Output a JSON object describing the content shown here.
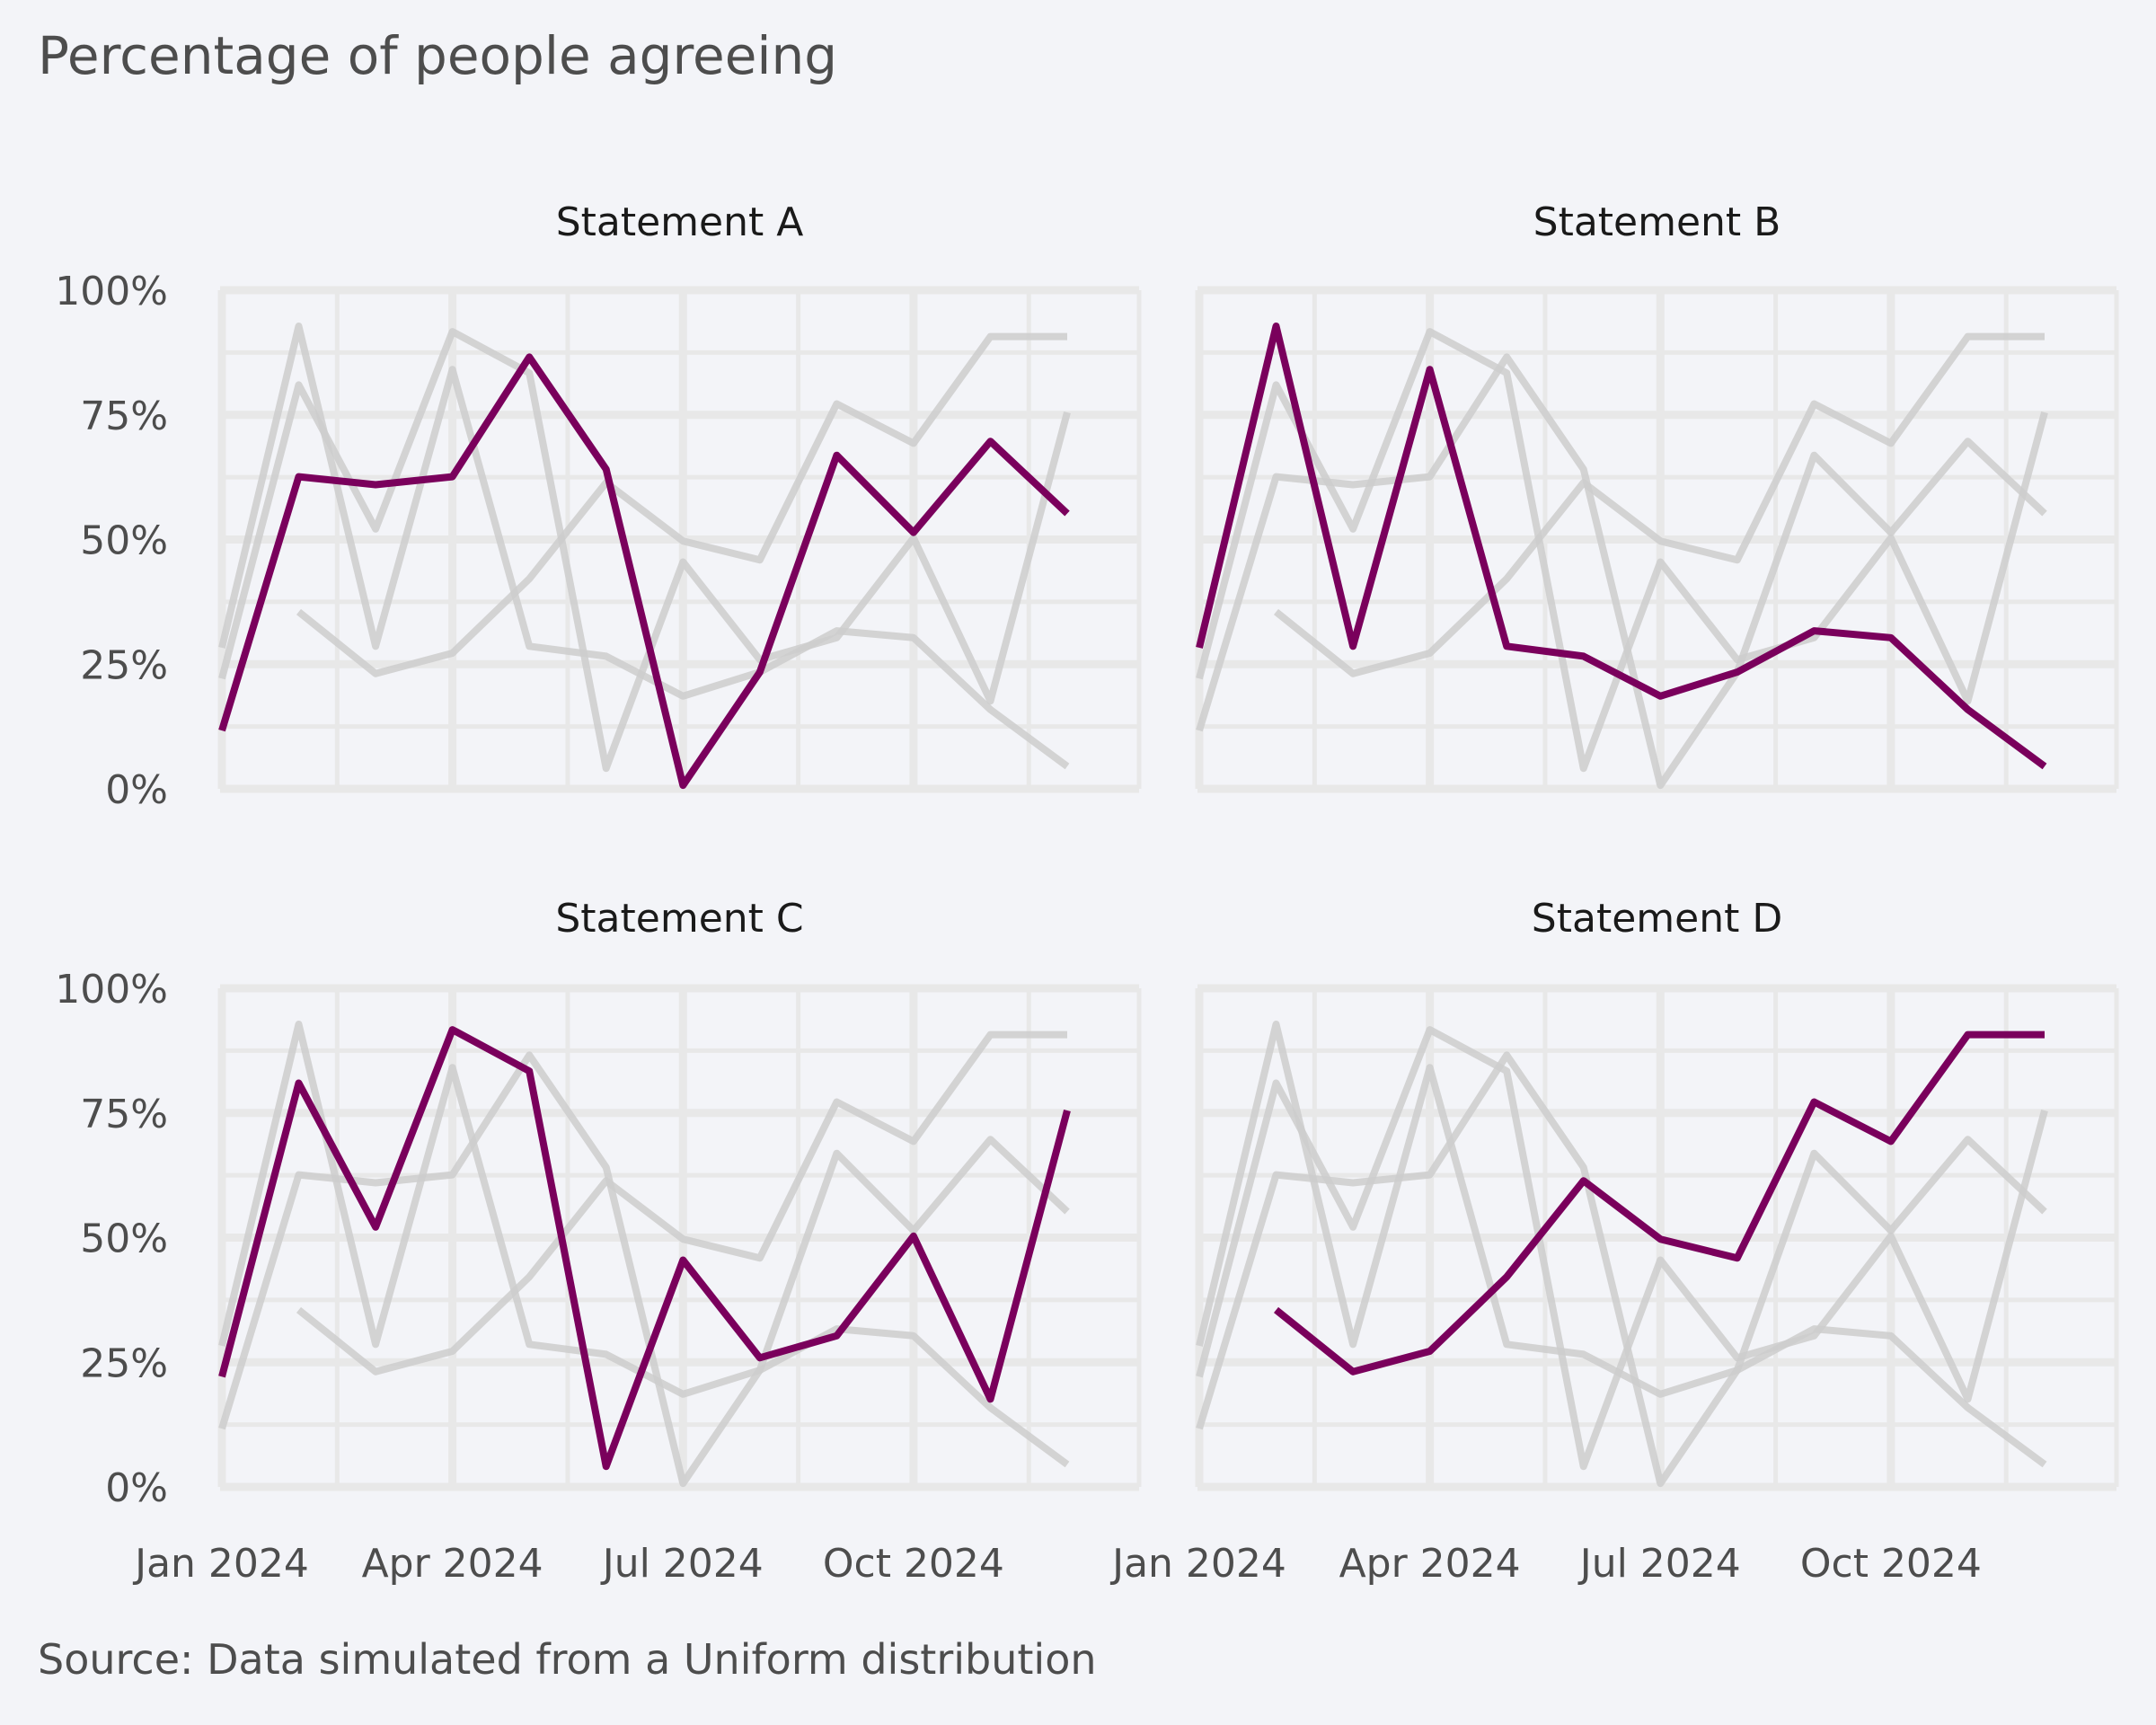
{
  "title": "Percentage of people agreeing",
  "caption": "Source: Data simulated from a Uniform distribution",
  "colors": {
    "highlight": "#7a005c",
    "background_series": "#cccccc",
    "grid": "#e8e8e8",
    "background": "#f3f4f8"
  },
  "chart_data": {
    "type": "line",
    "layout": "small-multiples 2x2",
    "title": "Percentage of people agreeing",
    "caption": "Source: Data simulated from a Uniform distribution",
    "xlabel": "",
    "ylabel": "",
    "x": [
      "2024-01",
      "2024-02",
      "2024-03",
      "2024-04",
      "2024-05",
      "2024-06",
      "2024-07",
      "2024-08",
      "2024-09",
      "2024-10",
      "2024-11",
      "2024-12"
    ],
    "x_tick_labels": [
      "Jan 2024",
      "Apr 2024",
      "Jul 2024",
      "Oct 2024"
    ],
    "x_tick_index": [
      0,
      3,
      6,
      9
    ],
    "y_tick_labels": [
      "0%",
      "25%",
      "50%",
      "75%",
      "100%"
    ],
    "y_tick_values": [
      0,
      25,
      50,
      75,
      100
    ],
    "ylim": [
      0,
      100
    ],
    "grid": true,
    "legend": "none",
    "series": [
      {
        "name": "Statement A",
        "values": [
          11.7,
          62.6,
          61.0,
          62.6,
          86.6,
          64.1,
          0.7,
          23.4,
          66.9,
          51.4,
          69.7,
          55.2
        ]
      },
      {
        "name": "Statement B",
        "values": [
          28.3,
          92.8,
          28.6,
          84.1,
          28.6,
          26.6,
          18.6,
          23.4,
          31.7,
          30.3,
          15.9,
          4.5
        ]
      },
      {
        "name": "Statement C",
        "values": [
          22.1,
          81.0,
          52.1,
          91.7,
          83.4,
          4.1,
          45.5,
          25.9,
          30.3,
          50.3,
          17.6,
          75.5
        ]
      },
      {
        "name": "Statement D",
        "values": [
          null,
          35.5,
          23.1,
          27.2,
          42.1,
          61.4,
          49.7,
          45.9,
          77.2,
          69.3,
          90.7,
          90.7
        ]
      }
    ],
    "panels": [
      {
        "label": "Statement A",
        "highlight": 0,
        "show_y_axis": true,
        "show_x_axis": false
      },
      {
        "label": "Statement B",
        "highlight": 1,
        "show_y_axis": false,
        "show_x_axis": false
      },
      {
        "label": "Statement C",
        "highlight": 2,
        "show_y_axis": true,
        "show_x_axis": true
      },
      {
        "label": "Statement D",
        "highlight": 3,
        "show_y_axis": false,
        "show_x_axis": true
      }
    ]
  }
}
